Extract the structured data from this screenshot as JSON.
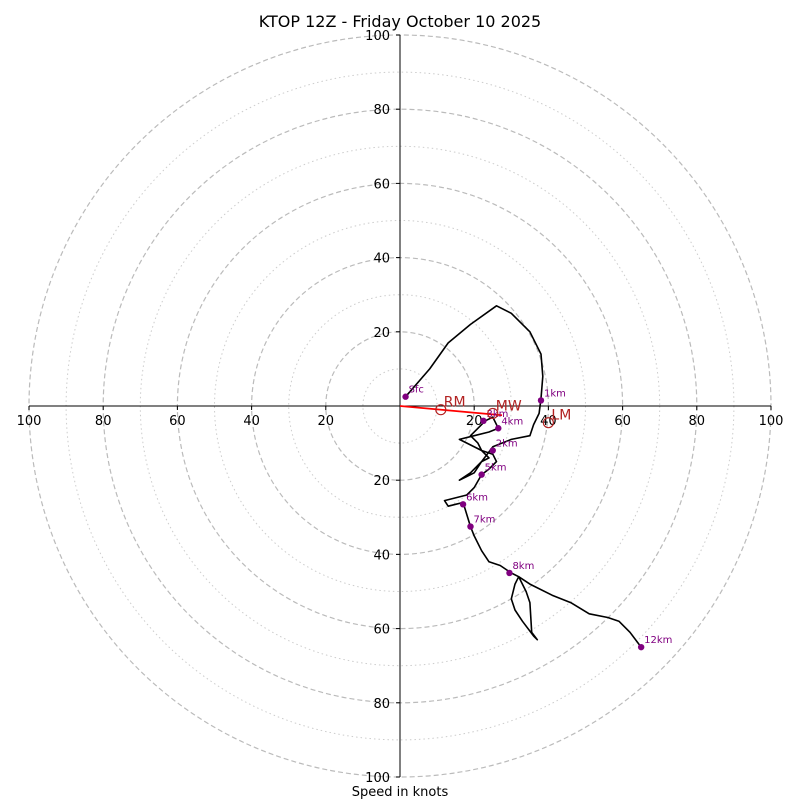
{
  "chart_data": {
    "type": "hodograph",
    "title": "KTOP 12Z - Friday October 10 2025",
    "xlabel": "Speed in knots",
    "axis_range": [
      -100,
      100
    ],
    "major_rings": [
      20,
      40,
      60,
      80,
      100
    ],
    "minor_rings": [
      10,
      30,
      50,
      70,
      90
    ],
    "x_tick_labels": [
      "100",
      "80",
      "60",
      "40",
      "20",
      "20",
      "40",
      "60",
      "80",
      "100"
    ],
    "x_tick_values": [
      -100,
      -80,
      -60,
      -40,
      -20,
      20,
      40,
      60,
      80,
      100
    ],
    "y_tick_labels": [
      "100",
      "80",
      "60",
      "40",
      "20",
      "20",
      "40",
      "60",
      "80",
      "100"
    ],
    "y_tick_values": [
      100,
      80,
      60,
      40,
      20,
      -20,
      -40,
      -60,
      -80,
      -100
    ],
    "hodograph_line": {
      "color": "#000000",
      "points": [
        [
          1.5,
          2.5
        ],
        [
          8,
          10
        ],
        [
          13,
          17
        ],
        [
          19,
          22
        ],
        [
          26,
          27
        ],
        [
          30,
          25
        ],
        [
          35,
          20
        ],
        [
          38,
          14
        ],
        [
          38.5,
          8
        ],
        [
          38,
          2
        ],
        [
          37.5,
          -2
        ],
        [
          36,
          -5
        ],
        [
          35,
          -8
        ],
        [
          30,
          -9
        ],
        [
          25,
          -11
        ],
        [
          22,
          -15
        ],
        [
          20,
          -18
        ],
        [
          18,
          -19
        ],
        [
          16,
          -20
        ],
        [
          19,
          -18
        ],
        [
          22,
          -15
        ],
        [
          24,
          -14
        ],
        [
          22,
          -12
        ],
        [
          21,
          -10
        ],
        [
          19,
          -8
        ],
        [
          21,
          -6
        ],
        [
          23,
          -4
        ],
        [
          25,
          -3
        ],
        [
          26.5,
          -6
        ],
        [
          24,
          -7
        ],
        [
          20,
          -8
        ],
        [
          16,
          -9
        ],
        [
          22,
          -12
        ],
        [
          25,
          -13
        ],
        [
          26,
          -15
        ],
        [
          24,
          -17
        ],
        [
          22,
          -18.5
        ],
        [
          20,
          -22
        ],
        [
          18,
          -24
        ],
        [
          12,
          -25.5
        ],
        [
          13,
          -27
        ],
        [
          15,
          -26.5
        ],
        [
          17,
          -26
        ],
        [
          19,
          -32.5
        ],
        [
          20,
          -35
        ],
        [
          22,
          -39
        ],
        [
          24,
          -42
        ],
        [
          27,
          -43
        ],
        [
          30,
          -45
        ],
        [
          32,
          -46
        ],
        [
          33,
          -48
        ],
        [
          34,
          -50
        ],
        [
          35,
          -53
        ],
        [
          35.5,
          -61
        ],
        [
          37,
          -63
        ],
        [
          36,
          -62
        ],
        [
          33,
          -58
        ],
        [
          31,
          -55
        ],
        [
          30,
          -52
        ],
        [
          31,
          -48
        ],
        [
          32,
          -46
        ],
        [
          35,
          -48
        ],
        [
          41,
          -51
        ],
        [
          46,
          -53
        ],
        [
          51,
          -56
        ],
        [
          56,
          -57
        ],
        [
          59,
          -58
        ],
        [
          62,
          -61
        ],
        [
          65,
          -65
        ]
      ]
    },
    "height_markers": [
      {
        "label": "Sfc",
        "u": 1.5,
        "v": 2.5
      },
      {
        "label": "1km",
        "u": 38,
        "v": 1.5
      },
      {
        "label": "2km",
        "u": 25,
        "v": -12
      },
      {
        "label": "3km",
        "u": 22.5,
        "v": -4
      },
      {
        "label": "4km",
        "u": 26.5,
        "v": -6
      },
      {
        "label": "5km",
        "u": 22,
        "v": -18.5
      },
      {
        "label": "6km",
        "u": 17,
        "v": -26.5
      },
      {
        "label": "7km",
        "u": 19,
        "v": -32.5
      },
      {
        "label": "8km",
        "u": 29.5,
        "v": -45
      },
      {
        "label": "12km",
        "u": 65,
        "v": -65
      }
    ],
    "motion_vector": {
      "color": "#ff0000",
      "from": [
        0,
        0
      ],
      "to": [
        27.5,
        -2.5
      ]
    },
    "storm_motions": [
      {
        "label": "RM",
        "u": 11,
        "v": -1
      },
      {
        "label": "MW",
        "u": 25,
        "v": -2
      },
      {
        "label": "LM",
        "u": 40,
        "v": -4.5
      }
    ],
    "colors": {
      "major_ring": "#bbbbbb",
      "minor_ring": "#cccccc",
      "marker": "#800080",
      "motion_label": "#b22222",
      "axes": "#000000"
    }
  }
}
